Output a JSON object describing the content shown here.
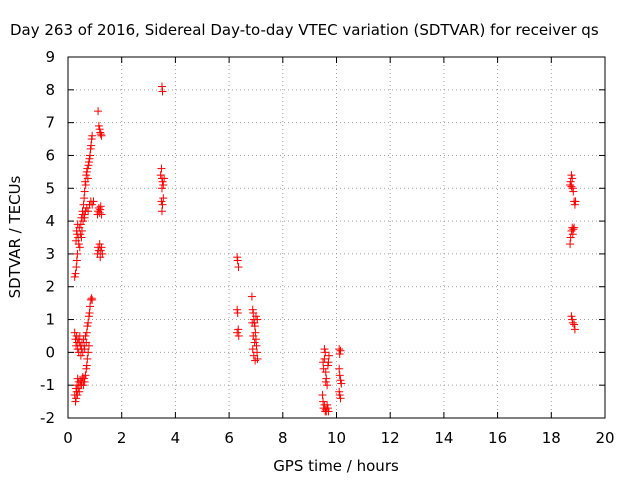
{
  "chart_data": {
    "type": "scatter",
    "title": "Day 263 of 2016, Sidereal Day-to-day VTEC variation (SDTVAR) for receiver qs",
    "xlabel": "GPS time / hours",
    "ylabel": "SDTVAR / TECUs",
    "xlim": [
      0,
      20
    ],
    "ylim": [
      -2,
      9
    ],
    "xticks": [
      "0",
      "2",
      "4",
      "6",
      "8",
      "10",
      "12",
      "14",
      "16",
      "18",
      "20"
    ],
    "yticks": [
      "-2",
      "-1",
      "0",
      "1",
      "2",
      "3",
      "4",
      "5",
      "6",
      "7",
      "8",
      "9"
    ],
    "grid": true,
    "marker": "plus",
    "color": "#ff0000",
    "series": [
      {
        "points": [
          [
            0.25,
            2.3
          ],
          [
            0.28,
            2.4
          ],
          [
            0.3,
            3.4
          ],
          [
            0.32,
            3.7
          ],
          [
            0.34,
            3.6
          ],
          [
            0.36,
            3.9
          ],
          [
            0.38,
            3.5
          ],
          [
            0.4,
            3.3
          ],
          [
            0.42,
            3.8
          ],
          [
            0.44,
            3.2
          ],
          [
            0.46,
            3.6
          ],
          [
            0.48,
            3.9
          ],
          [
            0.5,
            4.1
          ],
          [
            0.52,
            3.7
          ],
          [
            0.54,
            4.3
          ],
          [
            0.56,
            4.0
          ],
          [
            0.58,
            4.5
          ],
          [
            0.6,
            4.7
          ],
          [
            0.62,
            4.9
          ],
          [
            0.64,
            5.2
          ],
          [
            0.66,
            5.1
          ],
          [
            0.68,
            5.4
          ],
          [
            0.7,
            5.5
          ],
          [
            0.72,
            5.6
          ],
          [
            0.74,
            5.3
          ],
          [
            0.76,
            5.7
          ],
          [
            0.78,
            5.8
          ],
          [
            0.8,
            5.9
          ],
          [
            0.82,
            6.0
          ],
          [
            0.84,
            6.2
          ],
          [
            0.86,
            6.3
          ],
          [
            0.88,
            6.5
          ],
          [
            0.9,
            6.6
          ],
          [
            0.35,
            3.0
          ],
          [
            0.33,
            2.8
          ],
          [
            0.31,
            2.6
          ],
          [
            0.6,
            4.2
          ],
          [
            0.65,
            4.3
          ],
          [
            0.7,
            4.4
          ],
          [
            0.75,
            4.3
          ],
          [
            0.8,
            4.5
          ],
          [
            0.85,
            4.6
          ],
          [
            0.9,
            4.5
          ],
          [
            0.95,
            4.6
          ],
          [
            0.55,
            4.2
          ],
          [
            0.62,
            4.1
          ],
          [
            0.5,
            3.5
          ],
          [
            1.12,
            7.35
          ],
          [
            1.15,
            6.9
          ],
          [
            1.18,
            6.8
          ],
          [
            1.2,
            6.7
          ],
          [
            1.22,
            6.65
          ],
          [
            1.25,
            6.6
          ],
          [
            1.1,
            4.2
          ],
          [
            1.12,
            4.3
          ],
          [
            1.15,
            4.4
          ],
          [
            1.18,
            4.25
          ],
          [
            1.2,
            4.35
          ],
          [
            1.22,
            4.45
          ],
          [
            1.25,
            4.2
          ],
          [
            1.1,
            3.0
          ],
          [
            1.12,
            3.2
          ],
          [
            1.15,
            3.1
          ],
          [
            1.18,
            3.3
          ],
          [
            1.2,
            2.9
          ],
          [
            1.22,
            3.1
          ],
          [
            1.25,
            3.2
          ],
          [
            1.28,
            3.0
          ],
          [
            0.25,
            0.6
          ],
          [
            0.28,
            0.4
          ],
          [
            0.3,
            0.2
          ],
          [
            0.32,
            0.5
          ],
          [
            0.34,
            0.3
          ],
          [
            0.36,
            0.1
          ],
          [
            0.38,
            0.4
          ],
          [
            0.4,
            0.0
          ],
          [
            0.42,
            0.3
          ],
          [
            0.44,
            0.5
          ],
          [
            0.46,
            0.2
          ],
          [
            0.48,
            -0.1
          ],
          [
            0.5,
            0.1
          ],
          [
            0.52,
            0.3
          ],
          [
            0.55,
            0.0
          ],
          [
            0.58,
            0.4
          ],
          [
            0.6,
            0.2
          ],
          [
            0.62,
            0.1
          ],
          [
            0.65,
            0.5
          ],
          [
            0.68,
            0.3
          ],
          [
            0.7,
            0.6
          ],
          [
            0.72,
            0.8
          ],
          [
            0.75,
            0.9
          ],
          [
            0.78,
            1.1
          ],
          [
            0.8,
            1.2
          ],
          [
            0.82,
            1.4
          ],
          [
            0.85,
            1.6
          ],
          [
            0.88,
            1.65
          ],
          [
            0.9,
            1.6
          ],
          [
            0.25,
            -1.3
          ],
          [
            0.28,
            -1.5
          ],
          [
            0.3,
            -1.4
          ],
          [
            0.32,
            -1.2
          ],
          [
            0.34,
            -1.0
          ],
          [
            0.36,
            -0.8
          ],
          [
            0.38,
            -1.1
          ],
          [
            0.4,
            -0.9
          ],
          [
            0.42,
            -1.2
          ],
          [
            0.45,
            -1.0
          ],
          [
            0.48,
            -0.85
          ],
          [
            0.5,
            -1.0
          ],
          [
            0.52,
            -0.9
          ],
          [
            0.55,
            -0.75
          ],
          [
            0.58,
            -1.0
          ],
          [
            0.6,
            -0.8
          ],
          [
            0.62,
            -0.9
          ],
          [
            0.65,
            -0.7
          ],
          [
            0.68,
            -0.5
          ],
          [
            0.7,
            -0.4
          ],
          [
            0.72,
            -0.2
          ],
          [
            0.75,
            0.0
          ],
          [
            0.78,
            0.2
          ],
          [
            0.3,
            -1.1
          ],
          [
            0.35,
            -1.3
          ],
          [
            3.5,
            8.1
          ],
          [
            3.52,
            7.95
          ],
          [
            3.45,
            5.4
          ],
          [
            3.48,
            5.6
          ],
          [
            3.5,
            5.3
          ],
          [
            3.52,
            5.2
          ],
          [
            3.55,
            5.1
          ],
          [
            3.58,
            5.3
          ],
          [
            3.5,
            5.0
          ],
          [
            3.5,
            4.3
          ],
          [
            3.52,
            4.5
          ],
          [
            3.55,
            4.7
          ],
          [
            3.48,
            4.6
          ],
          [
            6.3,
            2.9
          ],
          [
            6.32,
            2.8
          ],
          [
            6.35,
            2.6
          ],
          [
            6.3,
            1.3
          ],
          [
            6.32,
            1.2
          ],
          [
            6.34,
            0.7
          ],
          [
            6.36,
            0.5
          ],
          [
            6.3,
            0.6
          ],
          [
            6.85,
            1.7
          ],
          [
            6.88,
            1.3
          ],
          [
            6.9,
            1.2
          ],
          [
            6.92,
            1.0
          ],
          [
            6.94,
            0.9
          ],
          [
            6.96,
            0.8
          ],
          [
            6.98,
            0.6
          ],
          [
            7.0,
            0.4
          ],
          [
            7.02,
            0.2
          ],
          [
            7.04,
            0.0
          ],
          [
            7.06,
            -0.2
          ],
          [
            6.86,
            0.9
          ],
          [
            6.9,
            0.5
          ],
          [
            6.95,
            0.3
          ],
          [
            7.0,
            1.1
          ],
          [
            7.05,
            1.0
          ],
          [
            6.88,
            0.1
          ],
          [
            6.92,
            -0.1
          ],
          [
            6.97,
            -0.25
          ],
          [
            9.48,
            -1.3
          ],
          [
            9.5,
            -1.5
          ],
          [
            9.52,
            -1.7
          ],
          [
            9.55,
            -1.6
          ],
          [
            9.58,
            -1.8
          ],
          [
            9.6,
            -1.75
          ],
          [
            9.62,
            -1.8
          ],
          [
            9.65,
            -1.6
          ],
          [
            9.68,
            -1.7
          ],
          [
            9.7,
            -1.8
          ],
          [
            9.5,
            -0.3
          ],
          [
            9.52,
            -0.5
          ],
          [
            9.55,
            -0.2
          ],
          [
            9.58,
            0.0
          ],
          [
            9.6,
            -0.6
          ],
          [
            9.62,
            -0.8
          ],
          [
            9.65,
            -1.0
          ],
          [
            9.68,
            -0.4
          ],
          [
            9.7,
            -0.3
          ],
          [
            9.72,
            -0.1
          ],
          [
            9.55,
            0.1
          ],
          [
            9.6,
            -0.9
          ],
          [
            10.1,
            0.1
          ],
          [
            10.12,
            -0.05
          ],
          [
            10.15,
            0.05
          ],
          [
            10.1,
            -0.5
          ],
          [
            10.12,
            -0.7
          ],
          [
            10.15,
            -0.85
          ],
          [
            10.18,
            -0.95
          ],
          [
            10.1,
            -1.2
          ],
          [
            10.12,
            -1.3
          ],
          [
            10.15,
            -1.4
          ],
          [
            18.7,
            5.1
          ],
          [
            18.72,
            5.2
          ],
          [
            18.75,
            5.4
          ],
          [
            18.78,
            5.3
          ],
          [
            18.8,
            5.0
          ],
          [
            18.82,
            4.9
          ],
          [
            18.85,
            4.6
          ],
          [
            18.88,
            4.5
          ],
          [
            18.9,
            4.6
          ],
          [
            18.75,
            5.05
          ],
          [
            18.7,
            3.3
          ],
          [
            18.72,
            3.5
          ],
          [
            18.75,
            3.7
          ],
          [
            18.78,
            3.8
          ],
          [
            18.8,
            3.6
          ],
          [
            18.82,
            3.75
          ],
          [
            18.85,
            3.8
          ],
          [
            18.75,
            1.1
          ],
          [
            18.78,
            1.0
          ],
          [
            18.8,
            0.9
          ],
          [
            18.85,
            0.85
          ],
          [
            18.88,
            0.7
          ]
        ]
      }
    ]
  }
}
